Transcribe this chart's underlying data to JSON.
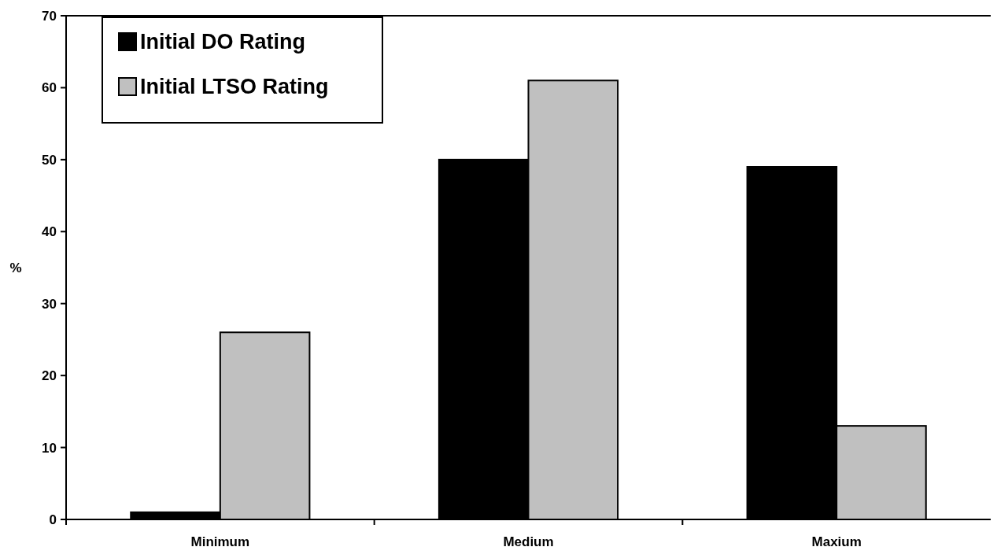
{
  "chart_data": {
    "type": "bar",
    "ylabel": "%",
    "categories": [
      "Minimum",
      "Medium",
      "Maxium"
    ],
    "series": [
      {
        "name": "Initial DO Rating",
        "color": "#000000",
        "values": [
          1,
          50,
          49
        ]
      },
      {
        "name": "Initial LTSO Rating",
        "color": "#c0c0c0",
        "values": [
          26,
          61,
          13
        ]
      }
    ],
    "ylim": [
      0,
      70
    ],
    "yticks": [
      0,
      10,
      20,
      30,
      40,
      50,
      60,
      70
    ],
    "grid": false,
    "legend": "top left"
  }
}
